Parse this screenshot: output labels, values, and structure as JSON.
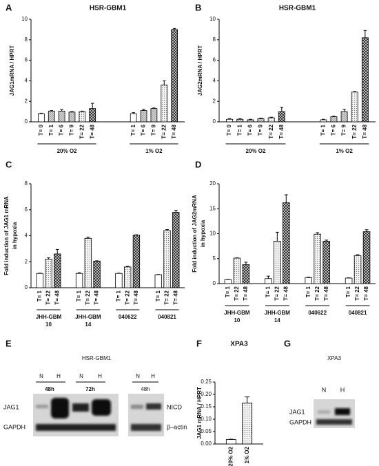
{
  "chart_data": [
    {
      "type": "bar",
      "panel": "A",
      "title": "HSR-GBM1",
      "y_label": [
        "JAG1mRNA / HPRT"
      ],
      "ylim": [
        0,
        10
      ],
      "yticks": [
        0,
        2,
        4,
        6,
        8,
        10
      ],
      "groups": [
        {
          "name": [
            "20% O2"
          ],
          "categories": [
            "T= 0",
            "T= 1",
            "T= 6",
            "T= 9",
            "T= 22",
            "T= 48"
          ],
          "values": [
            0.8,
            1.05,
            1.05,
            0.95,
            1.0,
            1.3
          ],
          "errors": [
            0.05,
            0.05,
            0.15,
            0.05,
            0.05,
            0.5
          ]
        },
        {
          "name": [
            "1% O2"
          ],
          "categories": [
            "T= 1",
            "T= 6",
            "T= 9",
            "T= 22",
            "T= 48"
          ],
          "values": [
            0.8,
            1.1,
            1.3,
            3.6,
            9.0
          ],
          "errors": [
            0.1,
            0.1,
            0.05,
            0.4,
            0.1
          ]
        }
      ]
    },
    {
      "type": "bar",
      "panel": "B",
      "title": "HSR-GBM1",
      "y_label": [
        "JAG2mRNA / HPRT"
      ],
      "ylim": [
        0,
        10
      ],
      "yticks": [
        0,
        2,
        4,
        6,
        8,
        10
      ],
      "groups": [
        {
          "name": [
            "20% O2"
          ],
          "categories": [
            "T= 0",
            "T= 1",
            "T= 6",
            "T= 9",
            "T= 22",
            "T= 48"
          ],
          "values": [
            0.25,
            0.25,
            0.2,
            0.3,
            0.4,
            1.0
          ],
          "errors": [
            0.05,
            0.05,
            0.05,
            0.05,
            0.05,
            0.4
          ]
        },
        {
          "name": [
            "1% O2"
          ],
          "categories": [
            "T= 1",
            "T= 6",
            "T= 9",
            "T= 22",
            "T= 48"
          ],
          "values": [
            0.2,
            0.5,
            1.0,
            2.9,
            8.2
          ],
          "errors": [
            0.05,
            0.05,
            0.2,
            0.05,
            0.7
          ]
        }
      ]
    },
    {
      "type": "bar",
      "panel": "C",
      "y_label": [
        "Fold induction of JAG1 mRNA",
        "in hypoxia"
      ],
      "ylim": [
        0,
        8
      ],
      "yticks": [
        0,
        2,
        4,
        6,
        8
      ],
      "groups": [
        {
          "name": [
            "JHH-GBM",
            "10"
          ],
          "categories": [
            "T= 1",
            "T= 22",
            "T= 48"
          ],
          "values": [
            1.1,
            2.2,
            2.6
          ],
          "errors": [
            0.02,
            0.1,
            0.35
          ]
        },
        {
          "name": [
            "JHH-GBM",
            "14"
          ],
          "categories": [
            "T= 1",
            "T= 22",
            "T= 48"
          ],
          "values": [
            1.1,
            3.8,
            2.05
          ],
          "errors": [
            0.05,
            0.1,
            0.02
          ]
        },
        {
          "name": [
            "040622"
          ],
          "categories": [
            "T= 1",
            "T= 22",
            "T= 48"
          ],
          "values": [
            1.1,
            1.6,
            4.05
          ],
          "errors": [
            0.02,
            0.05,
            0.02
          ]
        },
        {
          "name": [
            "040821"
          ],
          "categories": [
            "T= 1",
            "T= 22",
            "T= 48"
          ],
          "values": [
            1.0,
            4.4,
            5.8
          ],
          "errors": [
            0.02,
            0.08,
            0.15
          ]
        }
      ]
    },
    {
      "type": "bar",
      "panel": "D",
      "y_label": [
        "Fold induction of JAG2mRNA",
        "in hypoxia"
      ],
      "ylim": [
        0,
        20
      ],
      "yticks": [
        0,
        5,
        10,
        15,
        20
      ],
      "groups": [
        {
          "name": [
            "JHH-GBM",
            "10"
          ],
          "categories": [
            "T= 1",
            "T= 22",
            "T= 48"
          ],
          "values": [
            0.8,
            5.1,
            3.8
          ],
          "errors": [
            0.05,
            0.05,
            0.5
          ]
        },
        {
          "name": [
            "JHH-GBM",
            "14"
          ],
          "categories": [
            "T= 1",
            "T= 22",
            "T= 48"
          ],
          "values": [
            1.0,
            8.5,
            16.2
          ],
          "errors": [
            0.5,
            1.8,
            1.6
          ]
        },
        {
          "name": [
            "040622"
          ],
          "categories": [
            "T= 1",
            "T= 22",
            "T= 48"
          ],
          "values": [
            1.2,
            9.9,
            8.5
          ],
          "errors": [
            0.1,
            0.3,
            0.2
          ]
        },
        {
          "name": [
            "040821"
          ],
          "categories": [
            "T= 1",
            "T= 22",
            "T= 48"
          ],
          "values": [
            1.1,
            5.6,
            10.4
          ],
          "errors": [
            0.05,
            0.2,
            0.4
          ]
        }
      ]
    },
    {
      "type": "bar",
      "panel": "F",
      "title": "XPA3",
      "y_label": [
        "JAG1 mRNA / HPRT"
      ],
      "ylim": [
        0,
        0.25
      ],
      "yticks": [
        {
          "value": 0,
          "label": "0.00"
        },
        {
          "value": 0.05,
          "label": "0.05"
        },
        {
          "value": 0.1,
          "label": "0.10"
        },
        {
          "value": 0.15,
          "label": "0.15"
        },
        {
          "value": 0.2,
          "label": "0.20"
        },
        {
          "value": 0.25,
          "label": "0.25"
        }
      ],
      "groups": [
        {
          "categories": [
            "20% O2",
            "1% O2"
          ],
          "values": [
            0.018,
            0.165
          ],
          "errors": [
            0.001,
            0.025
          ]
        }
      ]
    }
  ],
  "blots": [
    {
      "panel": "E",
      "title": "HSR-GBM1",
      "lanes": [
        "N",
        "H",
        "N",
        "H",
        "N",
        "H"
      ],
      "times": [
        "48h",
        "72h",
        "48h"
      ],
      "left_rows": [
        "JAG1",
        "GAPDH"
      ],
      "right_rows": [
        "NICD",
        "β–actin"
      ]
    },
    {
      "panel": "G",
      "title": "XPA3",
      "lanes": [
        "N",
        "H"
      ],
      "rows": [
        "JAG1",
        "GAPDH"
      ]
    }
  ]
}
